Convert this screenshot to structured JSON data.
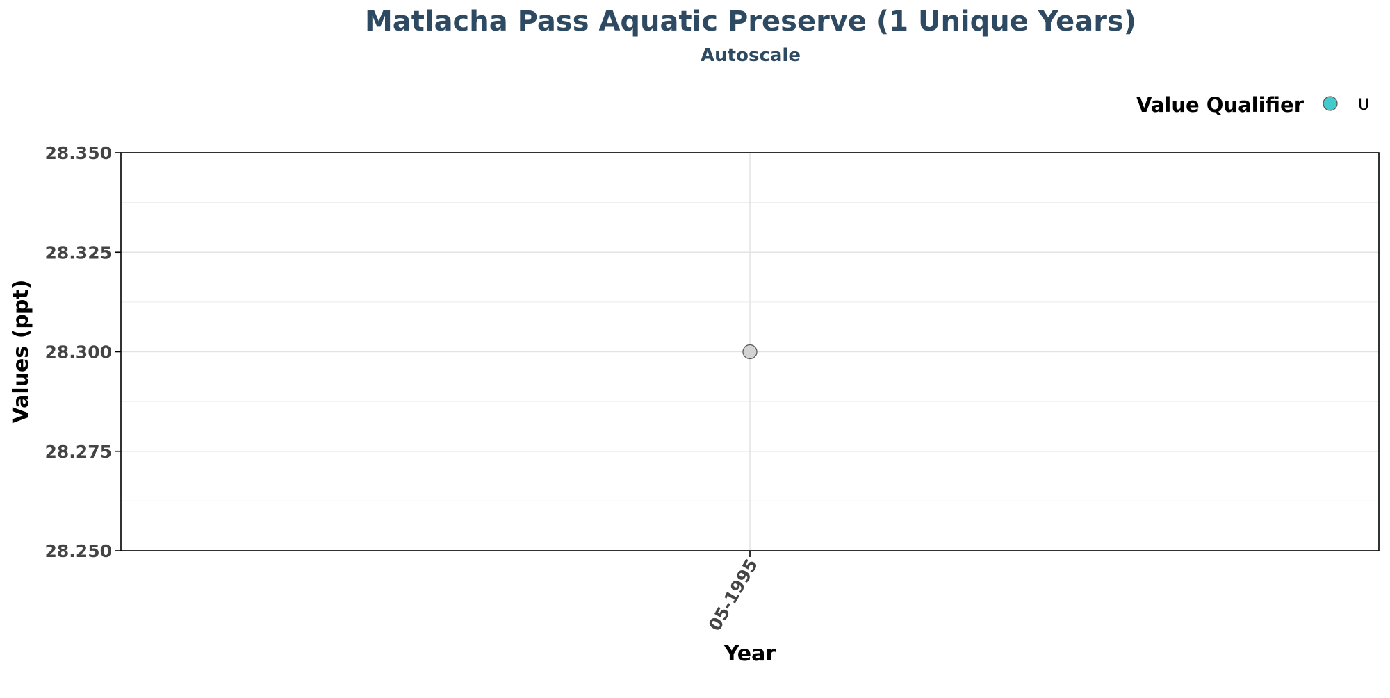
{
  "chart_data": {
    "type": "scatter",
    "title": "Matlacha Pass Aquatic Preserve (1 Unique Years)",
    "subtitle": "Autoscale",
    "xlabel": "Year",
    "ylabel": "Values (ppt)",
    "x_categories": [
      "05-1995"
    ],
    "ylim": [
      28.25,
      28.35
    ],
    "y_ticks": [
      "28.250",
      "28.275",
      "28.300",
      "28.325",
      "28.350"
    ],
    "y_tick_values": [
      28.25,
      28.275,
      28.3,
      28.325,
      28.35
    ],
    "y_minor_values": [
      28.2625,
      28.2875,
      28.3125,
      28.3375
    ],
    "grid": true,
    "legend": {
      "title": "Value Qualifier",
      "position": "top-right",
      "entries": [
        {
          "label": "U",
          "color": "#40CCCC"
        }
      ]
    },
    "points": [
      {
        "x": "05-1995",
        "y": 28.3,
        "fill": "#D3D3D3",
        "stroke": "#555555"
      }
    ]
  }
}
